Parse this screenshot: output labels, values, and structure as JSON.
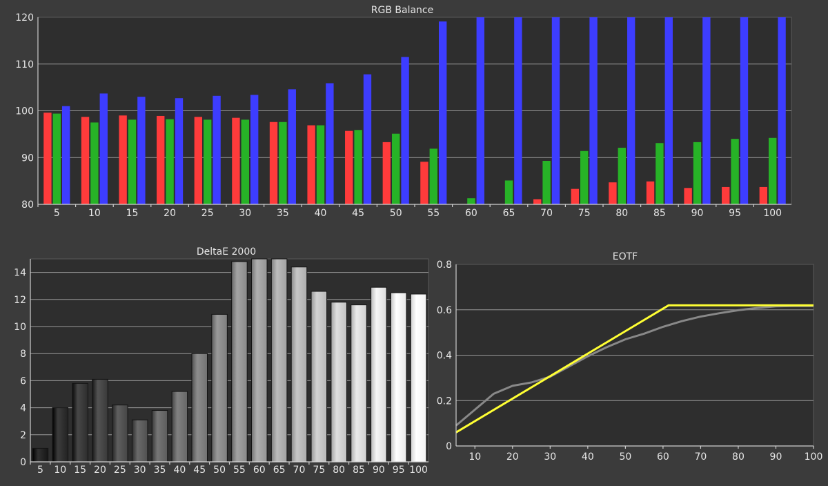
{
  "chart_data": [
    {
      "id": "rgb",
      "type": "bar",
      "title": "RGB Balance",
      "xlabel": "",
      "ylabel": "",
      "categories": [
        "5",
        "10",
        "15",
        "20",
        "25",
        "30",
        "35",
        "40",
        "45",
        "50",
        "55",
        "60",
        "65",
        "70",
        "75",
        "80",
        "85",
        "90",
        "95",
        "100"
      ],
      "ylim": [
        80,
        120
      ],
      "yticks": [
        80,
        90,
        100,
        110,
        120
      ],
      "grid": true,
      "series": [
        {
          "color": "#ff3b3b",
          "values": [
            99.6,
            98.7,
            99.0,
            98.9,
            98.7,
            98.5,
            97.6,
            96.9,
            95.7,
            93.3,
            89.1,
            79.5,
            79.5,
            81.1,
            83.3,
            84.7,
            84.9,
            83.5,
            83.7,
            83.7
          ]
        },
        {
          "color": "#27b327",
          "values": [
            99.4,
            97.5,
            98.1,
            98.2,
            98.1,
            98.1,
            97.6,
            96.9,
            95.9,
            95.1,
            91.9,
            81.3,
            85.1,
            89.3,
            91.4,
            92.1,
            93.1,
            93.3,
            94.0,
            94.2
          ]
        },
        {
          "color": "#3d3dff",
          "values": [
            101.0,
            103.7,
            103.0,
            102.7,
            103.2,
            103.4,
            104.6,
            105.9,
            107.8,
            111.5,
            119.1,
            120.0,
            120.0,
            120.0,
            120.0,
            120.0,
            120.0,
            120.0,
            120.0,
            120.0
          ]
        }
      ]
    },
    {
      "id": "delta",
      "type": "bar",
      "title": "DeltaE 2000",
      "xlabel": "",
      "ylabel": "",
      "categories": [
        "5",
        "10",
        "15",
        "20",
        "25",
        "30",
        "35",
        "40",
        "45",
        "50",
        "55",
        "60",
        "65",
        "70",
        "75",
        "80",
        "85",
        "90",
        "95",
        "100"
      ],
      "ylim": [
        0,
        15
      ],
      "yticks": [
        0,
        2,
        4,
        6,
        8,
        10,
        12,
        14
      ],
      "grid": true,
      "values": [
        1.0,
        4.0,
        5.8,
        6.1,
        4.2,
        3.1,
        3.8,
        5.2,
        8.0,
        10.9,
        14.8,
        15.0,
        15.0,
        14.4,
        12.6,
        11.8,
        11.6,
        12.9,
        12.5,
        12.4
      ]
    },
    {
      "id": "eotf",
      "type": "line",
      "title": "EOTF",
      "xlabel": "",
      "ylabel": "",
      "xlim": [
        5,
        100
      ],
      "ylim": [
        0,
        0.8
      ],
      "xticks": [
        10,
        20,
        30,
        40,
        50,
        60,
        70,
        80,
        90,
        100
      ],
      "yticks": [
        0,
        0.2,
        0.4,
        0.6,
        0.8
      ],
      "grid": true,
      "series": [
        {
          "color": "#888888",
          "x": [
            5,
            10,
            15,
            20,
            25,
            30,
            35,
            40,
            45,
            50,
            55,
            60,
            65,
            70,
            75,
            80,
            85,
            90,
            95,
            100
          ],
          "y": [
            0.09,
            0.16,
            0.23,
            0.265,
            0.28,
            0.305,
            0.35,
            0.395,
            0.435,
            0.47,
            0.495,
            0.525,
            0.55,
            0.57,
            0.585,
            0.598,
            0.608,
            0.615,
            0.617,
            0.617
          ]
        },
        {
          "color": "#ffff33",
          "x": [
            5,
            61.5,
            100
          ],
          "y": [
            0.06,
            0.62,
            0.62
          ]
        }
      ]
    }
  ]
}
